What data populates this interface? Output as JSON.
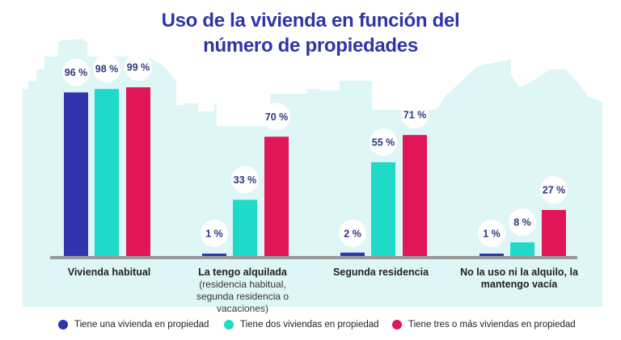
{
  "title_line1": "Uso de la vivienda en función del",
  "title_line2": "número de propiedades",
  "colors": {
    "title": "#2f35a8",
    "series": [
      "#3035ae",
      "#1fd9c9",
      "#e01658"
    ],
    "background_panel": "#dff6f6",
    "axis": "#999999",
    "label_text": "#2f3680"
  },
  "chart_data": {
    "type": "bar",
    "title": "Uso de la vivienda en función del número de propiedades",
    "xlabel": "",
    "ylabel": "",
    "ylim": [
      0,
      100
    ],
    "grid": false,
    "legend_position": "bottom",
    "categories": [
      {
        "main": "Vivienda habitual",
        "sub": ""
      },
      {
        "main": "La tengo alquilada",
        "sub": "(residencia habitual, segunda residencia o vacaciones)"
      },
      {
        "main": "Segunda residencia",
        "sub": ""
      },
      {
        "main": "No la uso ni la alquilo, la mantengo vacía",
        "sub": ""
      }
    ],
    "series": [
      {
        "name": "Tiene una vivienda en propiedad",
        "values": [
          96,
          1,
          2,
          1
        ],
        "labels": [
          "96 %",
          "1 %",
          "2 %",
          "1 %"
        ]
      },
      {
        "name": "Tiene dos viviendas en propiedad",
        "values": [
          98,
          33,
          55,
          8
        ],
        "labels": [
          "98 %",
          "33 %",
          "55 %",
          "8 %"
        ]
      },
      {
        "name": "Tiene tres o más viviendas en propiedad",
        "values": [
          99,
          70,
          71,
          27
        ],
        "labels": [
          "99 %",
          "70 %",
          "71 %",
          "27 %"
        ]
      }
    ]
  }
}
